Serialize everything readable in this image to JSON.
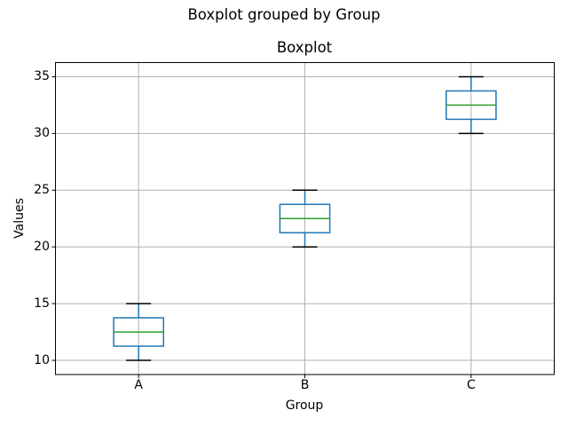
{
  "chart_data": {
    "type": "boxplot",
    "suptitle": "Boxplot grouped by Group",
    "title": "Boxplot",
    "xlabel": "Group",
    "ylabel": "Values",
    "categories": [
      "A",
      "B",
      "C"
    ],
    "positions": [
      1,
      2,
      3
    ],
    "series": [
      {
        "name": "A",
        "whislo": 10,
        "q1": 11.25,
        "med": 12.5,
        "q3": 13.75,
        "whishi": 15
      },
      {
        "name": "B",
        "whislo": 20,
        "q1": 21.25,
        "med": 22.5,
        "q3": 23.75,
        "whishi": 25
      },
      {
        "name": "C",
        "whislo": 30,
        "q1": 31.25,
        "med": 32.5,
        "q3": 33.75,
        "whishi": 35
      }
    ],
    "yticks": [
      10,
      15,
      20,
      25,
      30,
      35
    ],
    "ylim": [
      8.75,
      36.25
    ],
    "xlim": [
      0.5,
      3.5
    ],
    "box_width": 0.3,
    "cap_width": 0.15,
    "grid": true,
    "legend": false,
    "colors": {
      "box": "#1f77b4",
      "whisker": "#1f77b4",
      "cap": "#000000",
      "median": "#2ca02c",
      "grid": "#b0b0b0",
      "spine": "#000000",
      "text": "#000000",
      "background": "#ffffff"
    }
  }
}
